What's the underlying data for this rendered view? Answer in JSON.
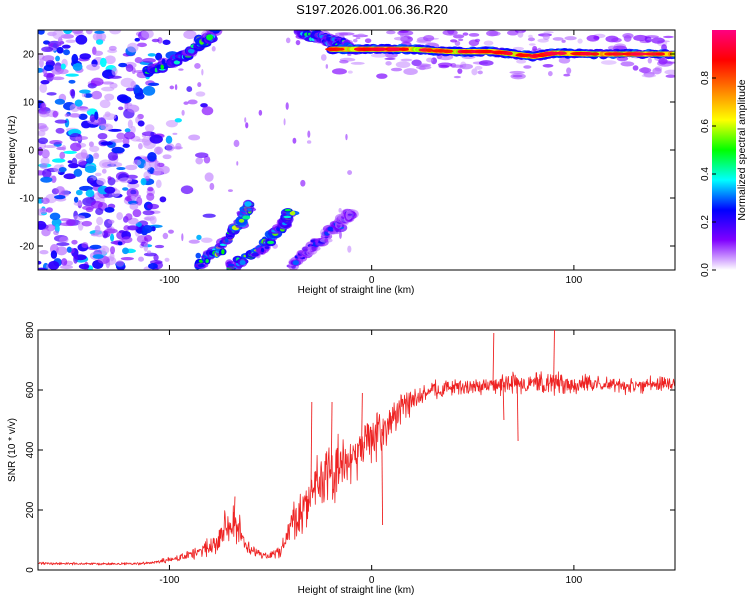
{
  "title": "S197.2026.001.06.36.R20",
  "chart_data": [
    {
      "type": "heatmap",
      "xlabel": "Height of straight line (km)",
      "ylabel": "Frequency (Hz)",
      "xlim": [
        -165,
        150
      ],
      "ylim": [
        -25,
        25
      ],
      "xticks": [
        -100,
        0,
        100
      ],
      "yticks": [
        -20,
        -10,
        0,
        10,
        20
      ],
      "colorbar": {
        "label": "Normalized spectral amplitude",
        "range": [
          0,
          1
        ],
        "ticks": [
          "0.0",
          "0.2",
          "0.4",
          "0.6",
          "0.8"
        ],
        "tick_values": [
          0,
          0.2,
          0.4,
          0.6,
          0.8
        ],
        "colors": [
          "#ffffff",
          "#8000ff",
          "#0000ff",
          "#00ffff",
          "#00ff00",
          "#ffff00",
          "#ff8000",
          "#ff0000",
          "#ff0080"
        ]
      },
      "features": {
        "main_line": {
          "description": "strong horizontal spectral line near +20 Hz",
          "x_range": [
            -20,
            150
          ],
          "points": [
            [
              -20,
              21
            ],
            [
              0,
              21
            ],
            [
              20,
              21
            ],
            [
              40,
              20.5
            ],
            [
              60,
              20.5
            ],
            [
              80,
              19.5
            ],
            [
              90,
              20.2
            ],
            [
              110,
              20
            ],
            [
              150,
              20
            ]
          ],
          "amplitude": 0.95
        },
        "branches": [
          {
            "points": [
              [
                -110,
                16.5
              ],
              [
                -95,
                19
              ],
              [
                -85,
                22
              ],
              [
                -78,
                24.5
              ]
            ],
            "amplitude": 0.45
          },
          {
            "points": [
              [
                -35,
                24.5
              ],
              [
                -10,
                21.5
              ]
            ],
            "amplitude": 0.4
          },
          {
            "points": [
              [
                -85,
                -24
              ],
              [
                -75,
                -21
              ],
              [
                -65,
                -15
              ],
              [
                -60,
                -11
              ]
            ],
            "amplitude": 0.55
          },
          {
            "points": [
              [
                -70,
                -24.5
              ],
              [
                -55,
                -21
              ],
              [
                -45,
                -16
              ],
              [
                -40,
                -13
              ]
            ],
            "amplitude": 0.5
          },
          {
            "points": [
              [
                -40,
                -24
              ],
              [
                -25,
                -19
              ],
              [
                -15,
                -15
              ],
              [
                -10,
                -13
              ]
            ],
            "amplitude": 0.25
          }
        ],
        "noise_region": {
          "x_range": [
            -165,
            -105
          ],
          "y_range": [
            -25,
            25
          ],
          "amplitude": 0.25
        }
      }
    },
    {
      "type": "line",
      "xlabel": "Height of straight line (km)",
      "ylabel": "SNR (10 * v/v)",
      "xlim": [
        -165,
        150
      ],
      "ylim": [
        0,
        800
      ],
      "xticks": [
        -100,
        0,
        100
      ],
      "yticks": [
        0,
        200,
        400,
        600,
        800
      ],
      "color": "#ee2222",
      "envelope": {
        "x": [
          -165,
          -130,
          -110,
          -95,
          -85,
          -78,
          -75,
          -72,
          -68,
          -65,
          -62,
          -55,
          -50,
          -45,
          -40,
          -35,
          -30,
          -25,
          -20,
          -15,
          -10,
          -5,
          0,
          5,
          10,
          15,
          20,
          25,
          30,
          40,
          50,
          60,
          70,
          80,
          90,
          100,
          110,
          120,
          130,
          140,
          150
        ],
        "y": [
          22,
          20,
          22,
          40,
          60,
          90,
          120,
          140,
          160,
          130,
          80,
          50,
          45,
          70,
          140,
          200,
          260,
          300,
          320,
          340,
          370,
          400,
          440,
          470,
          500,
          540,
          560,
          580,
          600,
          610,
          610,
          615,
          620,
          620,
          625,
          620,
          620,
          615,
          615,
          620,
          625
        ],
        "noise": [
          4,
          4,
          5,
          12,
          20,
          30,
          45,
          55,
          60,
          45,
          20,
          12,
          14,
          25,
          60,
          80,
          90,
          95,
          100,
          95,
          90,
          90,
          80,
          70,
          55,
          45,
          40,
          35,
          30,
          25,
          25,
          25,
          40,
          30,
          40,
          30,
          25,
          25,
          25,
          25,
          25
        ]
      },
      "spikes": [
        {
          "x": 60,
          "y": 790
        },
        {
          "x": 90,
          "y": 800
        },
        {
          "x": 65,
          "y": 500
        },
        {
          "x": 72,
          "y": 430
        },
        {
          "x": 5,
          "y": 150
        },
        {
          "x": -30,
          "y": 560
        },
        {
          "x": -20,
          "y": 560
        },
        {
          "x": -5,
          "y": 590
        },
        {
          "x": -68,
          "y": 245
        }
      ]
    }
  ]
}
